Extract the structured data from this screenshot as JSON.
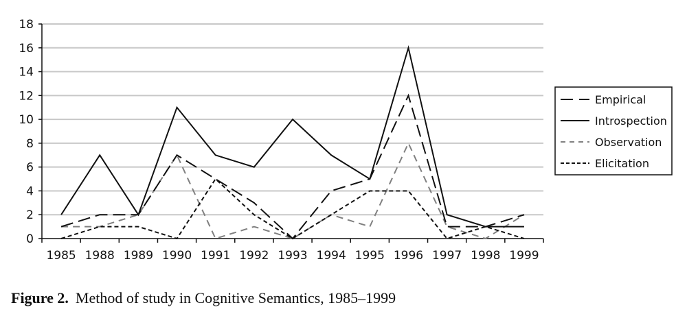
{
  "chart_data": {
    "type": "line",
    "title": "",
    "xlabel": "",
    "ylabel": "",
    "categories": [
      "1985",
      "1988",
      "1989",
      "1990",
      "1991",
      "1992",
      "1993",
      "1994",
      "1995",
      "1996",
      "1997",
      "1998",
      "1999"
    ],
    "ylim": [
      0,
      18
    ],
    "yticks": [
      0,
      2,
      4,
      6,
      8,
      10,
      12,
      14,
      16,
      18
    ],
    "grid": true,
    "legend_position": "right",
    "series": [
      {
        "name": "Empirical",
        "style": "long-dash",
        "color": "#111111",
        "values": [
          1,
          2,
          2,
          7,
          5,
          3,
          0,
          4,
          5,
          12,
          1,
          1,
          2
        ]
      },
      {
        "name": "Introspection",
        "style": "solid",
        "color": "#111111",
        "values": [
          2,
          7,
          2,
          11,
          7,
          6,
          10,
          7,
          5,
          16,
          2,
          1,
          1
        ]
      },
      {
        "name": "Observation",
        "style": "dash-grey",
        "color": "#808080",
        "values": [
          1,
          1,
          2,
          7,
          0,
          1,
          0,
          2,
          1,
          8,
          1,
          0,
          2
        ]
      },
      {
        "name": "Elicitation",
        "style": "short-dash",
        "color": "#111111",
        "values": [
          0,
          1,
          1,
          0,
          5,
          2,
          0,
          2,
          4,
          4,
          0,
          1,
          0
        ]
      }
    ]
  },
  "caption": {
    "figure_label": "Figure 2.",
    "text": "Method of study in Cognitive Semantics, 1985–1999"
  }
}
